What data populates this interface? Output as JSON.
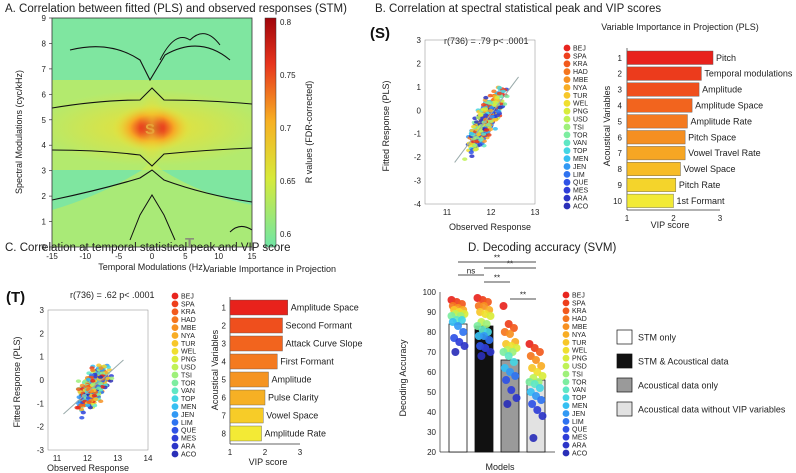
{
  "panels": {
    "A": {
      "title": "A. Correlation between fitted (PLS) and observed responses (STM)"
    },
    "B": {
      "title": "B. Correlation at spectral statistical peak and VIP scores",
      "marker": "(S)",
      "stat": "r(736) = .79 p< .0001"
    },
    "C": {
      "title": "C. Correlation at temporal statistical peak and VIP score",
      "marker": "(T)",
      "stat": "r(736) = .62 p< .0001"
    },
    "D": {
      "title": "D. Decoding accuracy (SVM)"
    }
  },
  "languages": [
    "BEJ",
    "SPA",
    "KRA",
    "HAD",
    "MBE",
    "NYA",
    "TUR",
    "WEL",
    "PNG",
    "USD",
    "TSI",
    "TOR",
    "VAN",
    "TOP",
    "MEN",
    "JEN",
    "LIM",
    "QUE",
    "MES",
    "ARA",
    "ACO"
  ],
  "language_colors": [
    "#e8251f",
    "#ee3f1c",
    "#f25a1d",
    "#f5761f",
    "#f79122",
    "#f8ad25",
    "#f7c72a",
    "#f0df2f",
    "#d9ec3a",
    "#bff256",
    "#9ef07a",
    "#7deda0",
    "#5fe7c4",
    "#44d6e4",
    "#36bff2",
    "#3299f4",
    "#2f73f0",
    "#2f52e6",
    "#2f3ed8",
    "#2c35c8",
    "#2a2fb8"
  ],
  "chart_data": [
    {
      "type": "heatmap",
      "panel": "A",
      "title": "A. Correlation between fitted (PLS) and observed responses (STM)",
      "xlabel": "Temporal Modulations (Hz)",
      "ylabel": "Spectral Modulations (cyc/kHz)",
      "xlim": [
        -15,
        15
      ],
      "ylim": [
        0,
        9
      ],
      "xticks": [
        -15,
        -10,
        -5,
        0,
        5,
        10,
        15
      ],
      "yticks": [
        0,
        1,
        2,
        3,
        4,
        5,
        6,
        7,
        8,
        9
      ],
      "colorbar": {
        "label": "R values (FDR-corrected)",
        "range": [
          0.6,
          0.8
        ],
        "ticks": [
          0.6,
          0.65,
          0.7,
          0.75,
          0.8
        ]
      },
      "annotations": [
        {
          "text": "S",
          "x": 0,
          "y": 3.5
        },
        {
          "text": "T",
          "x": 6,
          "y": 0.2
        }
      ]
    },
    {
      "type": "scatter",
      "panel": "B",
      "xlabel": "Observed Response",
      "ylabel": "Fitted Response (PLS)",
      "xlim": [
        10.5,
        13
      ],
      "ylim": [
        -4,
        3
      ],
      "xticks": [
        11,
        12,
        13
      ],
      "yticks": [
        -4,
        -3,
        -2,
        -1,
        0,
        1,
        2,
        3
      ],
      "stat": "r(736) = .79 p< .0001"
    },
    {
      "type": "bar",
      "panel": "B",
      "title": "Variable Importance in Projection (PLS)",
      "xlabel": "VIP score",
      "ylabel": "Acoustical Variables",
      "xlim": [
        1,
        3
      ],
      "xticks": [
        1,
        2,
        3
      ],
      "categories": [
        "Pitch",
        "Temporal modulations",
        "Amplitude",
        "Amplitude Space",
        "Amplitude Rate",
        "Pitch Space",
        "Vowel Travel Rate",
        "Vowel Space",
        "Pitch Rate",
        "1st Formant"
      ],
      "ranks": [
        "1",
        "2",
        "3",
        "4",
        "5",
        "6",
        "7",
        "8",
        "9",
        "10"
      ],
      "values": [
        2.85,
        2.6,
        2.55,
        2.4,
        2.3,
        2.25,
        2.25,
        2.15,
        2.05,
        2.0
      ]
    },
    {
      "type": "scatter",
      "panel": "C",
      "xlabel": "Observed Response",
      "ylabel": "Fitted Response (PLS)",
      "xlim": [
        10.7,
        14
      ],
      "ylim": [
        -3,
        3
      ],
      "xticks": [
        11,
        12,
        13,
        14
      ],
      "yticks": [
        -3,
        -2,
        -1,
        0,
        1,
        2,
        3
      ],
      "stat": "r(736) = .62 p< .0001"
    },
    {
      "type": "bar",
      "panel": "C",
      "title": "Variable Importance in Projection",
      "xlabel": "VIP score",
      "ylabel": "Acoustical Variables",
      "xlim": [
        1,
        3
      ],
      "xticks": [
        1,
        2,
        3
      ],
      "categories": [
        "Amplitude Space",
        "Second Formant",
        "Attack Curve Slope",
        "First Formant",
        "Amplitude",
        "Pulse Clarity",
        "Vowel Space",
        "Amplitude Rate"
      ],
      "ranks": [
        "1",
        "2",
        "3",
        "4",
        "5",
        "6",
        "7",
        "8"
      ],
      "values": [
        2.65,
        2.5,
        2.5,
        2.35,
        2.1,
        2.0,
        1.95,
        1.9
      ]
    },
    {
      "type": "bar",
      "panel": "D",
      "title": "D. Decoding accuracy (SVM)",
      "xlabel": "Models",
      "ylabel": "Decoding Accuracy",
      "ylim": [
        20,
        100
      ],
      "yticks": [
        20,
        30,
        40,
        50,
        60,
        70,
        80,
        90,
        100
      ],
      "series": [
        {
          "name": "STM only",
          "value": 84,
          "color": "#ffffff"
        },
        {
          "name": "STM & Acoustical data",
          "value": 83,
          "color": "#111111"
        },
        {
          "name": "Acoustical data only",
          "value": 66,
          "color": "#9a9a9a"
        },
        {
          "name": "Acoustical data without VIP variables",
          "value": 56,
          "color": "#e2e2e2"
        }
      ],
      "significance": [
        {
          "pair": [
            1,
            4
          ],
          "label": "**"
        },
        {
          "pair": [
            2,
            4
          ],
          "label": "**"
        },
        {
          "pair": [
            1,
            2
          ],
          "label": "ns"
        },
        {
          "pair": [
            2,
            3
          ],
          "label": "**"
        },
        {
          "pair": [
            3,
            4
          ],
          "label": "**"
        }
      ],
      "points": [
        [
          96,
          95,
          94,
          93,
          92,
          91,
          91,
          90,
          89,
          89,
          88,
          88,
          86,
          86,
          85,
          83,
          80,
          77,
          75,
          73,
          70
        ],
        [
          97,
          96,
          95,
          93,
          93,
          91,
          90,
          89,
          88,
          85,
          84,
          83,
          81,
          80,
          78,
          78,
          76,
          73,
          72,
          70,
          68
        ],
        [
          93,
          84,
          82,
          80,
          79,
          75,
          74,
          73,
          72,
          71,
          70,
          70,
          68,
          65,
          62,
          60,
          58,
          56,
          51,
          47,
          44
        ],
        [
          74,
          72,
          70,
          68,
          66,
          63,
          62,
          60,
          58,
          57,
          55,
          55,
          54,
          52,
          50,
          48,
          46,
          44,
          41,
          38,
          27
        ]
      ]
    }
  ]
}
